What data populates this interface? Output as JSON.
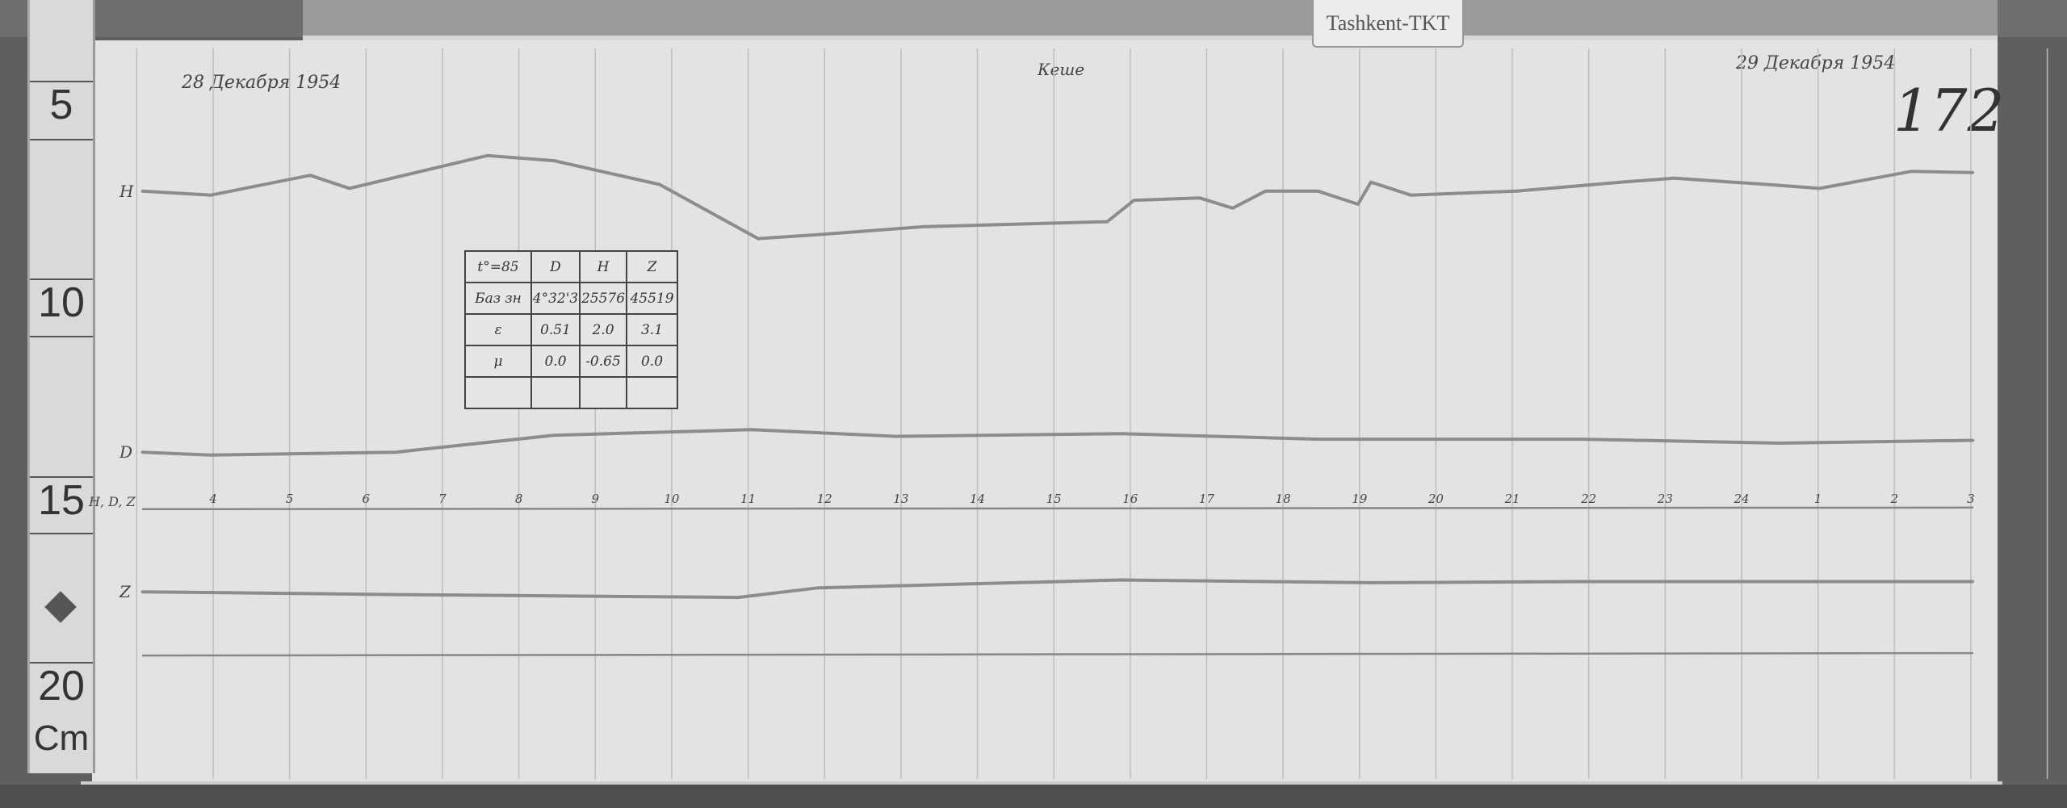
{
  "label_card": "Tashkent-TKT",
  "sheet_number": "172",
  "date_start": "28 Декабря 1954",
  "date_end": "29 Декабря 1954",
  "night_label": "Кеше",
  "ruler": {
    "unit": "Cm",
    "marks": [
      "5",
      "10",
      "15",
      "20"
    ]
  },
  "calibration_table": {
    "rows": [
      [
        "t°=85",
        "D",
        "H",
        "Z"
      ],
      [
        "Баз зн",
        "4°32'3",
        "25576",
        "45519"
      ],
      [
        "ε",
        "0.51",
        "2.0",
        "3.1"
      ],
      [
        "μ",
        "0.0",
        "-0.65",
        "0.0"
      ],
      [
        "",
        "",
        "",
        ""
      ]
    ]
  },
  "colors": {
    "paper": "#e3e3e3",
    "trace": "#8c8c8c",
    "grid": "#bdbdbd",
    "board": "#5f5f5f"
  },
  "chart_data": {
    "type": "line",
    "title": "",
    "baseline_label": "H, D, Z",
    "x_tick_labels": [
      "4",
      "5",
      "6",
      "7",
      "8",
      "9",
      "10",
      "11",
      "12",
      "13",
      "14",
      "15",
      "16",
      "17",
      "18",
      "19",
      "20",
      "21",
      "22",
      "23",
      "24",
      "1",
      "2",
      "3"
    ],
    "x_unit_note": "points given as [day, hour, ruler_cm]",
    "y_unit": "Cm",
    "grid": true,
    "series": [
      {
        "name": "H",
        "points": [
          [
            28,
            3.07,
            7.16
          ],
          [
            28,
            3.97,
            7.26
          ],
          [
            28,
            5.27,
            6.76
          ],
          [
            28,
            5.78,
            7.09
          ],
          [
            28,
            7.59,
            6.26
          ],
          [
            28,
            8.46,
            6.39
          ],
          [
            28,
            9.84,
            6.99
          ],
          [
            28,
            11.13,
            8.36
          ],
          [
            28,
            11.91,
            8.26
          ],
          [
            28,
            13.29,
            8.06
          ],
          [
            28,
            15.7,
            7.93
          ],
          [
            28,
            16.05,
            7.39
          ],
          [
            28,
            16.91,
            7.33
          ],
          [
            28,
            17.34,
            7.59
          ],
          [
            28,
            17.77,
            7.16
          ],
          [
            28,
            18.46,
            7.16
          ],
          [
            28,
            18.98,
            7.49
          ],
          [
            28,
            19.15,
            6.93
          ],
          [
            28,
            19.67,
            7.26
          ],
          [
            28,
            21.05,
            7.16
          ],
          [
            28,
            22.43,
            6.93
          ],
          [
            28,
            23.12,
            6.83
          ],
          [
            29,
            0.33,
            6.99
          ],
          [
            29,
            1.02,
            7.09
          ],
          [
            29,
            2.22,
            6.66
          ],
          [
            29,
            3.03,
            6.69
          ]
        ]
      },
      {
        "name": "D",
        "points": [
          [
            28,
            3.07,
            13.76
          ],
          [
            28,
            3.97,
            13.83
          ],
          [
            28,
            6.39,
            13.76
          ],
          [
            28,
            8.46,
            13.33
          ],
          [
            28,
            11.04,
            13.19
          ],
          [
            28,
            12.94,
            13.36
          ],
          [
            28,
            15.87,
            13.29
          ],
          [
            28,
            18.46,
            13.43
          ],
          [
            28,
            19.15,
            13.43
          ],
          [
            28,
            21.91,
            13.43
          ],
          [
            29,
            0.5,
            13.53
          ],
          [
            29,
            3.03,
            13.46
          ]
        ]
      },
      {
        "name": "Z",
        "points": [
          [
            28,
            3.07,
            17.29
          ],
          [
            28,
            6.39,
            17.36
          ],
          [
            28,
            10.87,
            17.43
          ],
          [
            28,
            11.91,
            17.19
          ],
          [
            28,
            15.87,
            16.99
          ],
          [
            28,
            19.15,
            17.06
          ],
          [
            28,
            21.91,
            17.03
          ],
          [
            29,
            3.03,
            17.03
          ]
        ]
      }
    ],
    "baseline_cm": 15.2,
    "bottom_line_cm": 18.9
  }
}
